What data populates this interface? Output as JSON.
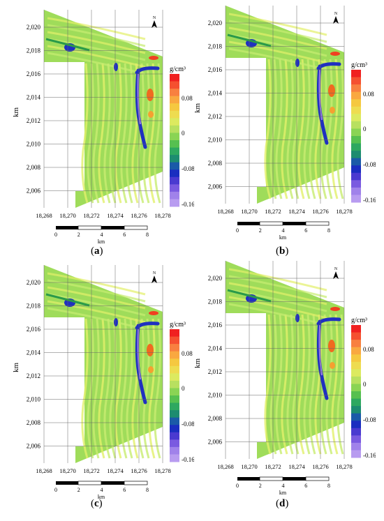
{
  "colors": {
    "background_green": "#9fdc5a",
    "light_green": "#c8ec70",
    "yellow_green": "#e2f06a",
    "anomaly_blue": "#2030c0",
    "anomaly_purple": "#9a7ae8",
    "anomaly_red": "#f03020"
  },
  "panels": [
    {
      "label_open": "(",
      "label_letter": "a",
      "label_close": ")",
      "north_label": "N",
      "y_axis_label": "km",
      "y_ticks": [
        "2,020",
        "2,018",
        "2,016",
        "2,014",
        "2,012",
        "2,010",
        "2,008",
        "2,006"
      ],
      "x_ticks": [
        "18,268",
        "18,270",
        "18,272",
        "18,274",
        "18,276",
        "18,278"
      ],
      "scalebar_ticks": [
        "0",
        "2",
        "4",
        "6",
        "8"
      ],
      "scalebar_unit": "km",
      "colorbar_unit": "g/cm³",
      "colorbar_ticks": [
        "0.08",
        "0",
        "-0.08",
        "-0.16"
      ]
    },
    {
      "label_open": "(",
      "label_letter": "b",
      "label_close": ")",
      "north_label": "N",
      "y_axis_label": "km",
      "y_ticks": [
        "2,020",
        "2,018",
        "2,016",
        "2,014",
        "2,012",
        "2,010",
        "2,008",
        "2,006"
      ],
      "x_ticks": [
        "18,268",
        "18,270",
        "18,272",
        "18,274",
        "18,276",
        "18,278"
      ],
      "scalebar_ticks": [
        "0",
        "2",
        "4",
        "6",
        "8"
      ],
      "scalebar_unit": "km",
      "colorbar_unit": "g/cm³",
      "colorbar_ticks": [
        "0.08",
        "0",
        "-0.08",
        "-0.16"
      ]
    },
    {
      "label_open": "(",
      "label_letter": "c",
      "label_close": ")",
      "north_label": "N",
      "y_axis_label": "km",
      "y_ticks": [
        "2,020",
        "2,018",
        "2,016",
        "2,014",
        "2,012",
        "2,010",
        "2,008",
        "2,006"
      ],
      "x_ticks": [
        "18,268",
        "18,270",
        "18,272",
        "18,274",
        "18,276",
        "18,278"
      ],
      "scalebar_ticks": [
        "0",
        "2",
        "4",
        "6",
        "8"
      ],
      "scalebar_unit": "km",
      "colorbar_unit": "g/cm³",
      "colorbar_ticks": [
        "0.08",
        "0",
        "-0.08",
        "-0.16"
      ]
    },
    {
      "label_open": "(",
      "label_letter": "d",
      "label_close": ")",
      "north_label": "N",
      "y_axis_label": "km",
      "y_ticks": [
        "2,020",
        "2,018",
        "2,016",
        "2,014",
        "2,012",
        "2,010",
        "2,008",
        "2,006"
      ],
      "x_ticks": [
        "18,268",
        "18,270",
        "18,272",
        "18,274",
        "18,276",
        "18,278"
      ],
      "scalebar_ticks": [
        "0",
        "2",
        "4",
        "6",
        "8"
      ],
      "scalebar_unit": "km",
      "colorbar_unit": "g/cm³",
      "colorbar_ticks": [
        "0.08",
        "0",
        "-0.08",
        "-0.16"
      ]
    }
  ]
}
